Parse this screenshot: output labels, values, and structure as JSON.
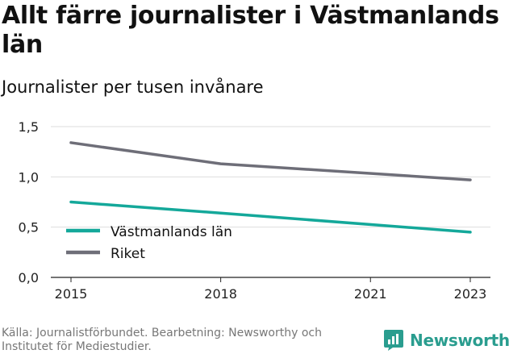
{
  "title": "Allt färre journalister i Västmanlands län",
  "subtitle": "Journalister per tusen invånare",
  "source": "Källa: Journalistförbundet. Bearbetning: Newsworthy och Institutet för Mediestudier.",
  "brand": "Newsworthy",
  "colors": {
    "vastmanland": "#14a89a",
    "riket": "#6e6e78",
    "grid": "#dddddd",
    "brand": "#2a9d8f"
  },
  "chart_data": {
    "type": "line",
    "title": "Allt färre journalister i Västmanlands län",
    "subtitle": "Journalister per tusen invånare",
    "xlabel": "",
    "ylabel": "",
    "x": [
      2015,
      2018,
      2023
    ],
    "xticks": [
      "2015",
      "2018",
      "2021",
      "2023"
    ],
    "yticks": [
      "0,0",
      "0,5",
      "1,0",
      "1,5"
    ],
    "ylim": [
      0,
      1.5
    ],
    "xlim": [
      2015,
      2023
    ],
    "grid": true,
    "legend_position": "bottom-left",
    "series": [
      {
        "name": "Västmanlands län",
        "values": [
          0.75,
          0.64,
          0.45
        ]
      },
      {
        "name": "Riket",
        "values": [
          1.34,
          1.13,
          0.97
        ]
      }
    ]
  }
}
